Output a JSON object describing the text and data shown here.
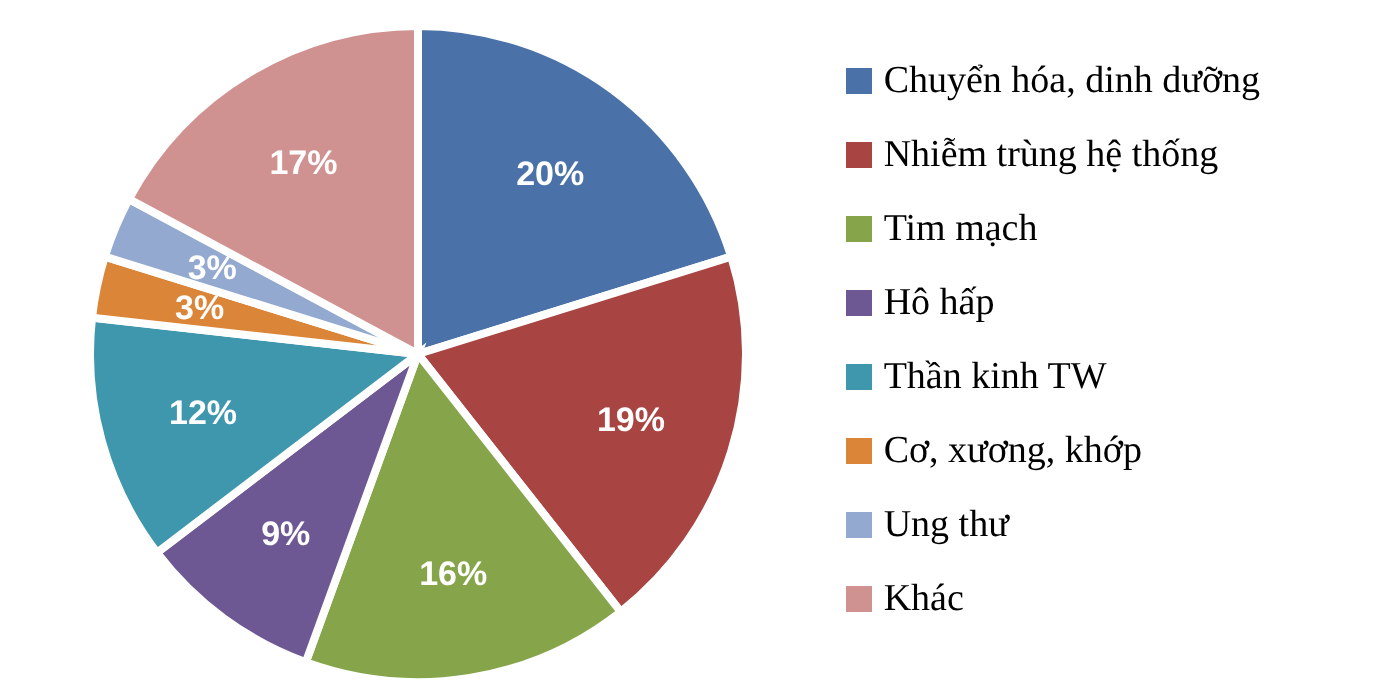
{
  "chart_data": {
    "type": "pie",
    "categories": [
      "Chuyển hóa, dinh dưỡng",
      "Nhiễm trùng hệ thống",
      "Tim mạch",
      "Hô hấp",
      "Thần kinh TW",
      "Cơ, xương, khớp",
      "Ung thư",
      "Khác"
    ],
    "values": [
      20,
      19,
      16,
      9,
      12,
      3,
      3,
      17
    ],
    "colors": [
      "#4a72a8",
      "#a84442",
      "#86a54a",
      "#6e5894",
      "#3f97ad",
      "#db8539",
      "#94a9d0",
      "#d09291"
    ],
    "value_labels": [
      "20%",
      "19%",
      "16%",
      "9%",
      "12%",
      "3%",
      "3%",
      "17%"
    ],
    "legend": "right"
  }
}
